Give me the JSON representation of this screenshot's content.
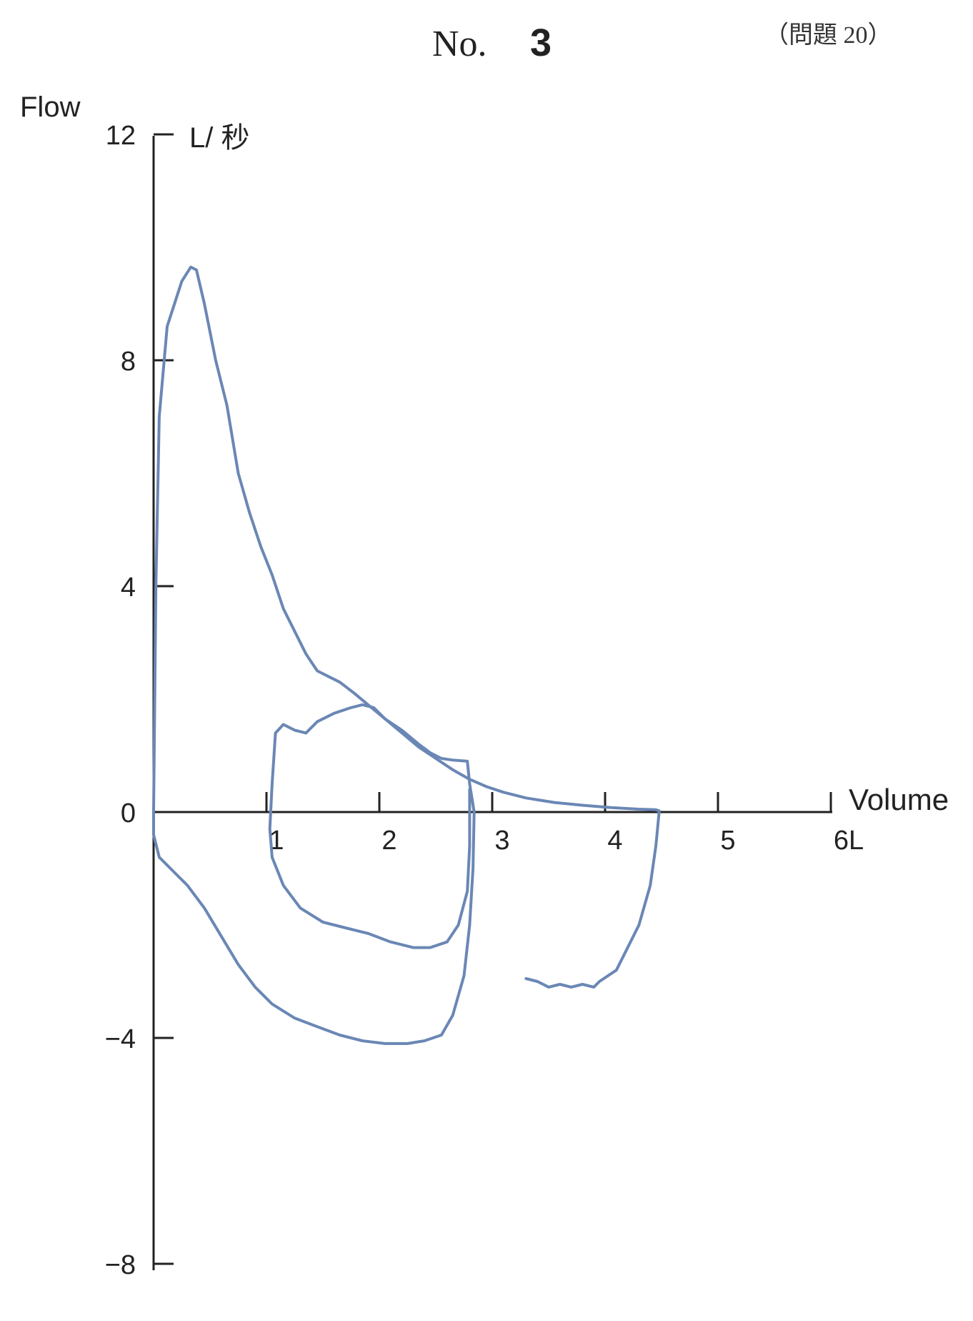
{
  "header": {
    "no_label": "No.",
    "no_value": "3",
    "question_ref": "（問題 20）"
  },
  "chart_data": {
    "type": "line",
    "title": "",
    "ylabel": "Flow",
    "y_unit": "L/ 秒",
    "xlabel": "Volume",
    "ylim": [
      -8,
      12
    ],
    "xlim": [
      0,
      6
    ],
    "y_ticks": [
      {
        "value": 12,
        "label": "12"
      },
      {
        "value": 8,
        "label": "8"
      },
      {
        "value": 4,
        "label": "4"
      },
      {
        "value": 0,
        "label": "0"
      },
      {
        "value": -4,
        "label": "−4"
      },
      {
        "value": -8,
        "label": "−8"
      }
    ],
    "x_ticks": [
      {
        "value": 1,
        "label": "1"
      },
      {
        "value": 2,
        "label": "2"
      },
      {
        "value": 3,
        "label": "3"
      },
      {
        "value": 4,
        "label": "4"
      },
      {
        "value": 5,
        "label": "5"
      },
      {
        "value": 6,
        "label": "6L"
      }
    ],
    "grid": false,
    "line_color": "#6a87b5",
    "series": [
      {
        "points": [
          [
            0,
            0
          ],
          [
            0.02,
            4
          ],
          [
            0.05,
            7
          ],
          [
            0.12,
            8.6
          ],
          [
            0.25,
            9.4
          ],
          [
            0.33,
            9.65
          ],
          [
            0.38,
            9.6
          ],
          [
            0.45,
            9.0
          ],
          [
            0.55,
            8.0
          ],
          [
            0.65,
            7.2
          ],
          [
            0.75,
            6.0
          ],
          [
            0.85,
            5.3
          ],
          [
            0.95,
            4.7
          ],
          [
            1.05,
            4.2
          ],
          [
            1.15,
            3.6
          ],
          [
            1.25,
            3.2
          ],
          [
            1.35,
            2.8
          ],
          [
            1.45,
            2.5
          ],
          [
            1.55,
            2.4
          ],
          [
            1.65,
            2.3
          ],
          [
            1.78,
            2.1
          ],
          [
            1.9,
            1.9
          ],
          [
            2.05,
            1.65
          ],
          [
            2.2,
            1.4
          ],
          [
            2.35,
            1.15
          ],
          [
            2.5,
            0.95
          ],
          [
            2.65,
            0.75
          ],
          [
            2.8,
            0.58
          ],
          [
            2.95,
            0.45
          ],
          [
            3.1,
            0.35
          ],
          [
            3.3,
            0.25
          ],
          [
            3.55,
            0.17
          ],
          [
            3.8,
            0.12
          ],
          [
            4.05,
            0.08
          ],
          [
            4.3,
            0.05
          ],
          [
            4.45,
            0.04
          ],
          [
            4.48,
            0.02
          ],
          [
            4.45,
            -0.6
          ],
          [
            4.4,
            -1.3
          ],
          [
            4.3,
            -2.0
          ],
          [
            4.2,
            -2.4
          ],
          [
            4.1,
            -2.8
          ],
          [
            3.95,
            -3.0
          ],
          [
            3.9,
            -3.1
          ],
          [
            3.8,
            -3.05
          ],
          [
            3.7,
            -3.1
          ],
          [
            3.6,
            -3.05
          ],
          [
            3.5,
            -3.1
          ],
          [
            3.4,
            -3.0
          ],
          [
            3.3,
            -2.95
          ]
        ]
      },
      {
        "points": [
          [
            0,
            0
          ],
          [
            0.0,
            -0.4
          ],
          [
            0.05,
            -0.8
          ],
          [
            0.15,
            -1.0
          ],
          [
            0.3,
            -1.3
          ],
          [
            0.45,
            -1.7
          ],
          [
            0.6,
            -2.2
          ],
          [
            0.75,
            -2.7
          ],
          [
            0.9,
            -3.1
          ],
          [
            1.05,
            -3.4
          ],
          [
            1.25,
            -3.65
          ],
          [
            1.45,
            -3.8
          ],
          [
            1.65,
            -3.95
          ],
          [
            1.85,
            -4.05
          ],
          [
            2.05,
            -4.1
          ],
          [
            2.25,
            -4.1
          ],
          [
            2.4,
            -4.05
          ],
          [
            2.55,
            -3.95
          ],
          [
            2.65,
            -3.6
          ],
          [
            2.75,
            -2.9
          ],
          [
            2.8,
            -2.0
          ],
          [
            2.83,
            -1.0
          ],
          [
            2.84,
            0.0
          ],
          [
            2.8,
            0.5
          ],
          [
            2.78,
            0.9
          ],
          [
            2.65,
            0.92
          ],
          [
            2.55,
            0.95
          ],
          [
            2.45,
            1.05
          ],
          [
            2.35,
            1.2
          ],
          [
            2.2,
            1.45
          ],
          [
            2.05,
            1.65
          ],
          [
            1.95,
            1.85
          ],
          [
            1.85,
            1.9
          ],
          [
            1.75,
            1.85
          ],
          [
            1.6,
            1.75
          ],
          [
            1.45,
            1.6
          ],
          [
            1.35,
            1.4
          ],
          [
            1.25,
            1.45
          ],
          [
            1.15,
            1.55
          ],
          [
            1.08,
            1.4
          ],
          [
            1.05,
            0.5
          ],
          [
            1.03,
            -0.3
          ],
          [
            1.05,
            -0.8
          ],
          [
            1.15,
            -1.3
          ],
          [
            1.3,
            -1.7
          ],
          [
            1.5,
            -1.95
          ],
          [
            1.7,
            -2.05
          ],
          [
            1.9,
            -2.15
          ],
          [
            2.1,
            -2.3
          ],
          [
            2.3,
            -2.4
          ],
          [
            2.45,
            -2.4
          ],
          [
            2.6,
            -2.3
          ],
          [
            2.7,
            -2.0
          ],
          [
            2.78,
            -1.4
          ],
          [
            2.8,
            -0.6
          ],
          [
            2.8,
            0.4
          ]
        ]
      }
    ]
  }
}
